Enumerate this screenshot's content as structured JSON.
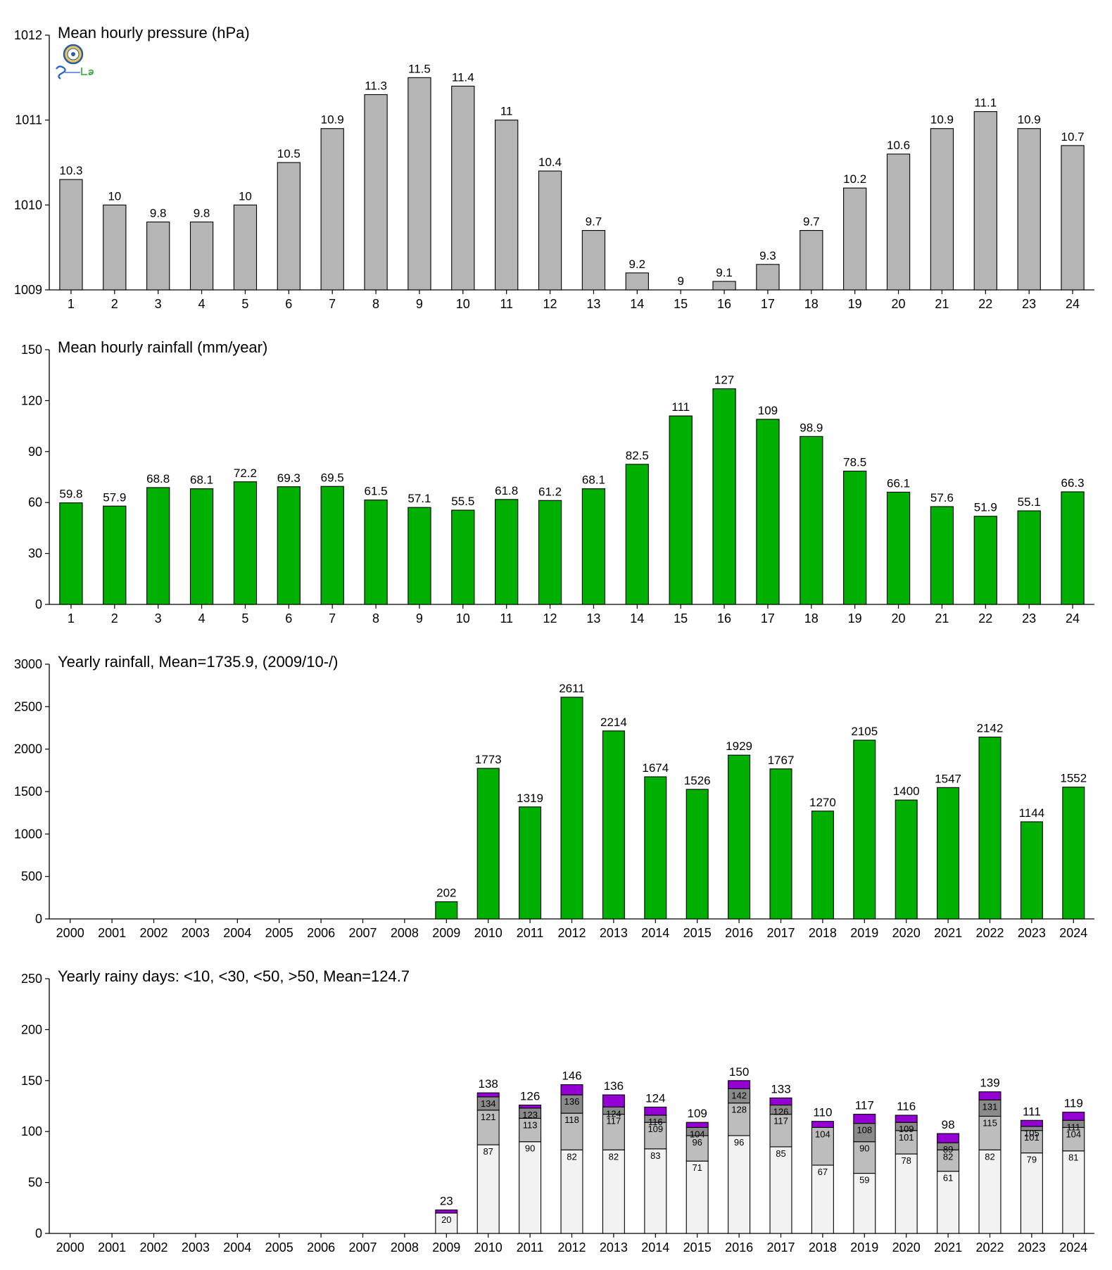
{
  "logo": {
    "icon": "seal-icon",
    "colors": {
      "ring": "#2f5aa8",
      "inner": "#e9c95a",
      "text_s": "#1f5fd0",
      "text_lab": "#2aa52a"
    }
  },
  "chart_data": [
    {
      "type": "bar",
      "title": "Mean hourly pressure (hPa)",
      "xlabel": "",
      "ylabel": "",
      "ylim": [
        1009,
        1012
      ],
      "yticks": [
        "1009",
        "1010",
        "1011",
        "1012"
      ],
      "categories": [
        "1",
        "2",
        "3",
        "4",
        "5",
        "6",
        "7",
        "8",
        "9",
        "10",
        "11",
        "12",
        "13",
        "14",
        "15",
        "16",
        "17",
        "18",
        "19",
        "20",
        "21",
        "22",
        "23",
        "24"
      ],
      "values": [
        1010.3,
        1010.0,
        1009.8,
        1009.8,
        1010.0,
        1010.5,
        1010.9,
        1011.3,
        1011.5,
        1011.4,
        1011.0,
        1010.4,
        1009.7,
        1009.2,
        1009.0,
        1009.1,
        1009.3,
        1009.7,
        1010.2,
        1010.6,
        1010.9,
        1011.1,
        1010.9,
        1010.7
      ],
      "labels": [
        "10.3",
        "10",
        "9.8",
        "9.8",
        "10",
        "10.5",
        "10.9",
        "11.3",
        "11.5",
        "11.4",
        "11",
        "10.4",
        "9.7",
        "9.2",
        "9",
        "9.1",
        "9.3",
        "9.7",
        "10.2",
        "10.6",
        "10.9",
        "11.1",
        "10.9",
        "10.7"
      ],
      "color": "#b5b5b5",
      "grid": false,
      "legend": "none"
    },
    {
      "type": "bar",
      "title": "Mean hourly rainfall (mm/year)",
      "xlabel": "",
      "ylabel": "",
      "ylim": [
        0,
        150
      ],
      "yticks": [
        "0",
        "30",
        "60",
        "90",
        "120",
        "150"
      ],
      "categories": [
        "1",
        "2",
        "3",
        "4",
        "5",
        "6",
        "7",
        "8",
        "9",
        "10",
        "11",
        "12",
        "13",
        "14",
        "15",
        "16",
        "17",
        "18",
        "19",
        "20",
        "21",
        "22",
        "23",
        "24"
      ],
      "values": [
        59.8,
        57.9,
        68.8,
        68.1,
        72.2,
        69.3,
        69.5,
        61.5,
        57.1,
        55.5,
        61.8,
        61.2,
        68.1,
        82.5,
        111,
        127,
        109,
        98.9,
        78.5,
        66.1,
        57.6,
        51.9,
        55.1,
        66.3
      ],
      "labels": [
        "59.8",
        "57.9",
        "68.8",
        "68.1",
        "72.2",
        "69.3",
        "69.5",
        "61.5",
        "57.1",
        "55.5",
        "61.8",
        "61.2",
        "68.1",
        "82.5",
        "111",
        "127",
        "109",
        "98.9",
        "78.5",
        "66.1",
        "57.6",
        "51.9",
        "55.1",
        "66.3"
      ],
      "color": "#00b000",
      "grid": false,
      "legend": "none"
    },
    {
      "type": "bar",
      "title": "Yearly rainfall, Mean=1735.9, (2009/10-/)",
      "xlabel": "",
      "ylabel": "",
      "ylim": [
        0,
        3000
      ],
      "yticks": [
        "0",
        "500",
        "1000",
        "1500",
        "2000",
        "2500",
        "3000"
      ],
      "categories": [
        "2000",
        "2001",
        "2002",
        "2003",
        "2004",
        "2005",
        "2006",
        "2007",
        "2008",
        "2009",
        "2010",
        "2011",
        "2012",
        "2013",
        "2014",
        "2015",
        "2016",
        "2017",
        "2018",
        "2019",
        "2020",
        "2021",
        "2022",
        "2023",
        "2024"
      ],
      "values": [
        null,
        null,
        null,
        null,
        null,
        null,
        null,
        null,
        null,
        202,
        1773,
        1319,
        2611,
        2214,
        1674,
        1526,
        1929,
        1767,
        1270,
        2105,
        1400,
        1547,
        2142,
        1144,
        1552
      ],
      "labels": [
        "",
        "",
        "",
        "",
        "",
        "",
        "",
        "",
        "",
        "202",
        "1773",
        "1319",
        "2611",
        "2214",
        "1674",
        "1526",
        "1929",
        "1767",
        "1270",
        "2105",
        "1400",
        "1547",
        "2142",
        "1144",
        "1552"
      ],
      "color": "#00b000",
      "grid": false,
      "legend": "none"
    },
    {
      "type": "bar",
      "stacked": true,
      "title": "Yearly rainy days: <10, <30, <50, >50, Mean=124.7",
      "xlabel": "",
      "ylabel": "",
      "ylim": [
        0,
        250
      ],
      "yticks": [
        "0",
        "50",
        "100",
        "150",
        "200",
        "250"
      ],
      "categories": [
        "2000",
        "2001",
        "2002",
        "2003",
        "2004",
        "2005",
        "2006",
        "2007",
        "2008",
        "2009",
        "2010",
        "2011",
        "2012",
        "2013",
        "2014",
        "2015",
        "2016",
        "2017",
        "2018",
        "2019",
        "2020",
        "2021",
        "2022",
        "2023",
        "2024"
      ],
      "cumulative": {
        "lt10": [
          null,
          null,
          null,
          null,
          null,
          null,
          null,
          null,
          null,
          20,
          87,
          90,
          82,
          82,
          83,
          71,
          96,
          85,
          67,
          59,
          78,
          61,
          82,
          79,
          81
        ],
        "lt30": [
          null,
          null,
          null,
          null,
          null,
          null,
          null,
          null,
          null,
          null,
          121,
          113,
          118,
          117,
          109,
          96,
          128,
          117,
          104,
          90,
          101,
          82,
          115,
          101,
          104
        ],
        "lt50": [
          null,
          null,
          null,
          null,
          null,
          null,
          null,
          null,
          null,
          null,
          134,
          123,
          136,
          124,
          116,
          104,
          142,
          126,
          null,
          108,
          109,
          89,
          131,
          105,
          111
        ],
        "total": [
          null,
          null,
          null,
          null,
          null,
          null,
          null,
          null,
          null,
          23,
          138,
          126,
          146,
          136,
          124,
          109,
          150,
          133,
          110,
          117,
          116,
          98,
          139,
          111,
          119
        ]
      },
      "segment_labels": {
        "lt10": [
          "",
          "",
          "",
          "",
          "",
          "",
          "",
          "",
          "",
          "20",
          "87",
          "90",
          "82",
          "82",
          "83",
          "71",
          "96",
          "85",
          "67",
          "59",
          "78",
          "61",
          "82",
          "79",
          "81"
        ],
        "lt30": [
          "",
          "",
          "",
          "",
          "",
          "",
          "",
          "",
          "",
          "",
          "121",
          "113",
          "118",
          "117",
          "109",
          "96",
          "128",
          "117",
          "104",
          "90",
          "101",
          "82",
          "115",
          "101",
          "104"
        ],
        "lt50": [
          "",
          "",
          "",
          "",
          "",
          "",
          "",
          "",
          "",
          "",
          "134",
          "123",
          "136",
          "124",
          "116",
          "104",
          "142",
          "126",
          "",
          "108",
          "109",
          "89",
          "131",
          "105",
          "111"
        ]
      },
      "total_labels": [
        "",
        "",
        "",
        "",
        "",
        "",
        "",
        "",
        "",
        "23",
        "138",
        "126",
        "146",
        "136",
        "124",
        "109",
        "150",
        "133",
        "110",
        "117",
        "116",
        "98",
        "139",
        "111",
        "119"
      ],
      "colors": {
        "lt10": "#f2f2f2",
        "lt30": "#bdbdbd",
        "lt50": "#8a8a8a",
        "gt50": "#9400d3"
      },
      "grid": false,
      "legend": "none"
    }
  ]
}
